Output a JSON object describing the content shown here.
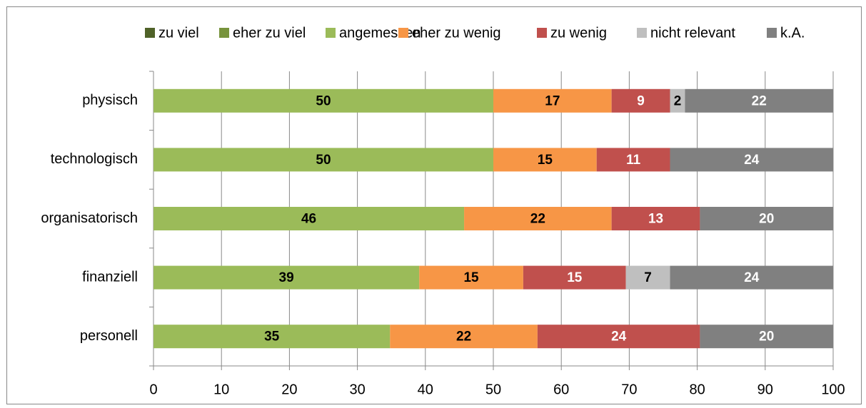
{
  "chart_data": {
    "type": "stacked_barh",
    "categories": [
      "physisch",
      "technologisch",
      "organisatorisch",
      "finanziell",
      "personell"
    ],
    "series": [
      {
        "name": "zu viel",
        "color": "#4f6228",
        "label_color": "#000000",
        "values": [
          null,
          null,
          null,
          null,
          null
        ],
        "value_labels": [
          null,
          null,
          null,
          null,
          null
        ]
      },
      {
        "name": "eher zu viel",
        "color": "#77933c",
        "label_color": "#000000",
        "values": [
          null,
          null,
          null,
          null,
          null
        ],
        "value_labels": [
          null,
          null,
          null,
          null,
          null
        ]
      },
      {
        "name": "angemessen",
        "color": "#9bbb59",
        "label_color": "#000000",
        "values": [
          50,
          50,
          45.7,
          39.1,
          34.8
        ],
        "value_labels": [
          "50",
          "50",
          "46",
          "39",
          "35"
        ]
      },
      {
        "name": "eher zu wenig",
        "color": "#f79646",
        "label_color": "#000000",
        "values": [
          17.4,
          15.2,
          21.7,
          15.3,
          21.7
        ],
        "value_labels": [
          "17",
          "15",
          "22",
          "15",
          "22"
        ]
      },
      {
        "name": "zu wenig",
        "color": "#c0504d",
        "label_color": "#ffffff",
        "values": [
          8.6,
          10.8,
          13.0,
          15.1,
          23.9
        ],
        "value_labels": [
          "9",
          "11",
          "13",
          "15",
          "24"
        ]
      },
      {
        "name": "nicht relevant",
        "color": "#bfbfbf",
        "label_color": "#000000",
        "values": [
          2.2,
          null,
          null,
          6.5,
          null
        ],
        "value_labels": [
          "2",
          null,
          null,
          "7",
          null
        ]
      },
      {
        "name": "k.A.",
        "color": "#808080",
        "label_color": "#ffffff",
        "values": [
          21.8,
          24,
          19.6,
          24,
          19.6
        ],
        "value_labels": [
          "22",
          "24",
          "20",
          "24",
          "20"
        ]
      }
    ],
    "xlim": [
      0,
      100
    ],
    "xticks": [
      0,
      10,
      20,
      30,
      40,
      50,
      60,
      70,
      80,
      90,
      100
    ],
    "grid": true
  }
}
